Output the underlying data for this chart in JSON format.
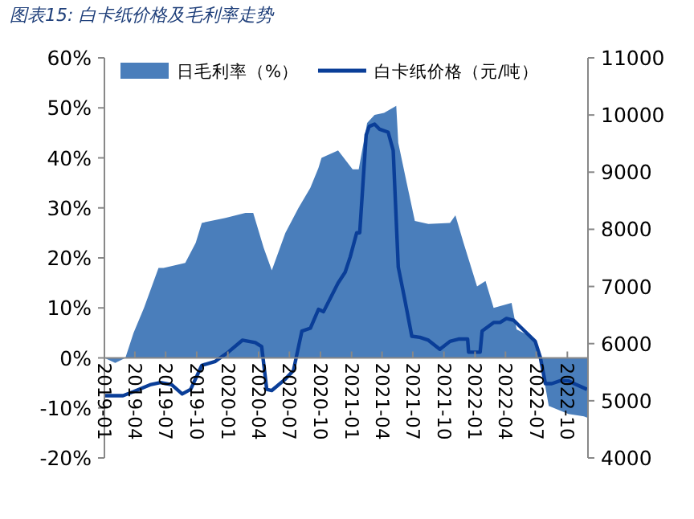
{
  "chart_data": {
    "type": "area",
    "title": "图表15: 白卡纸价格及毛利率走势",
    "legend": "top",
    "grid": false,
    "xlim": [
      "2019-01-01",
      "2022-12-01"
    ],
    "xticks": [
      "2019-01",
      "2019-04",
      "2019-07",
      "2019-10",
      "2020-01",
      "2020-04",
      "2020-07",
      "2020-10",
      "2021-01",
      "2021-04",
      "2021-07",
      "2021-10",
      "2022-01",
      "2022-04",
      "2022-07",
      "2022-10"
    ],
    "ylim": [
      -20,
      60
    ],
    "yticks": [
      {
        "value": -20,
        "label": "-20%"
      },
      {
        "value": -10,
        "label": "-10%"
      },
      {
        "value": 0,
        "label": "0%"
      },
      {
        "value": 10,
        "label": "10%"
      },
      {
        "value": 20,
        "label": "20%"
      },
      {
        "value": 30,
        "label": "30%"
      },
      {
        "value": 40,
        "label": "40%"
      },
      {
        "value": 50,
        "label": "50%"
      },
      {
        "value": 60,
        "label": "60%"
      }
    ],
    "y2lim": [
      4000,
      11000
    ],
    "y2ticks": [
      4000,
      5000,
      6000,
      7000,
      8000,
      9000,
      10000,
      11000
    ],
    "series": [
      {
        "name": "日毛利率（%）",
        "type": "area",
        "color": "#4a7ebb",
        "x": [
          "2019-01-01",
          "2019-02-02",
          "2019-03-04",
          "2019-03-28",
          "2019-04-28",
          "2019-06-10",
          "2019-06-25",
          "2019-08-28",
          "2019-09-28",
          "2019-10-16",
          "2019-12-25",
          "2020-02-22",
          "2020-03-16",
          "2020-04-16",
          "2020-05-10",
          "2020-06-19",
          "2020-07-28",
          "2020-09-01",
          "2020-09-25",
          "2020-10-04",
          "2020-11-22",
          "2021-01-04",
          "2021-01-22",
          "2021-02-16",
          "2021-03-10",
          "2021-04-07",
          "2021-05-13",
          "2021-05-19",
          "2021-06-13",
          "2021-07-07",
          "2021-08-16",
          "2021-10-19",
          "2021-11-04",
          "2021-11-28",
          "2022-01-07",
          "2022-02-01",
          "2022-02-25",
          "2022-04-19",
          "2022-05-04",
          "2022-06-22",
          "2022-07-13",
          "2022-08-07",
          "2022-10-04",
          "2022-11-19",
          "2022-12-01"
        ],
        "values": [
          0,
          -1,
          0,
          5,
          10,
          18,
          18,
          19,
          23,
          27,
          28,
          29,
          29,
          22,
          17.5,
          25,
          30,
          34,
          38,
          40,
          41.5,
          37.7,
          37.7,
          47,
          48.6,
          49,
          50.4,
          43,
          35,
          27.4,
          26.8,
          27,
          28.5,
          23,
          14.3,
          15.4,
          10,
          11,
          5.7,
          4,
          0,
          -9.6,
          -11.2,
          -11.7,
          -12
        ]
      },
      {
        "name": "白卡纸价格（元/吨）",
        "type": "line",
        "axis": "y2",
        "color": "#0a3e98",
        "x": [
          "2019-01-01",
          "2019-02-25",
          "2019-03-28",
          "2019-05-16",
          "2019-06-16",
          "2019-07-19",
          "2019-08-19",
          "2019-09-13",
          "2019-10-16",
          "2019-11-25",
          "2020-01-04",
          "2020-02-13",
          "2020-03-22",
          "2020-04-10",
          "2020-04-25",
          "2020-05-10",
          "2020-06-19",
          "2020-07-13",
          "2020-08-07",
          "2020-09-01",
          "2020-09-25",
          "2020-10-10",
          "2020-11-22",
          "2020-12-13",
          "2020-12-28",
          "2021-01-16",
          "2021-01-25",
          "2021-02-13",
          "2021-02-22",
          "2021-03-10",
          "2021-03-25",
          "2021-04-19",
          "2021-05-04",
          "2021-05-19",
          "2021-06-07",
          "2021-06-28",
          "2021-07-22",
          "2021-08-16",
          "2021-09-19",
          "2021-10-19",
          "2021-11-13",
          "2021-12-10",
          "2021-12-13",
          "2022-01-16",
          "2022-01-22",
          "2022-02-25",
          "2022-03-16",
          "2022-04-04",
          "2022-04-25",
          "2022-05-19",
          "2022-06-28",
          "2022-07-13",
          "2022-07-28",
          "2022-08-16",
          "2022-09-10",
          "2022-10-04",
          "2022-10-25",
          "2022-11-28"
        ],
        "values": [
          5090,
          5090,
          5160,
          5280,
          5320,
          5280,
          5120,
          5200,
          5620,
          5690,
          5860,
          6060,
          6020,
          5950,
          5200,
          5180,
          5380,
          5530,
          6220,
          6270,
          6600,
          6560,
          7060,
          7250,
          7520,
          7940,
          7940,
          9650,
          9800,
          9840,
          9750,
          9700,
          9380,
          7340,
          6780,
          6130,
          6110,
          6060,
          5900,
          6040,
          6080,
          6080,
          5850,
          5850,
          6220,
          6370,
          6370,
          6440,
          6410,
          6270,
          6040,
          5760,
          5300,
          5300,
          5350,
          5350,
          5290,
          5200
        ]
      }
    ]
  }
}
